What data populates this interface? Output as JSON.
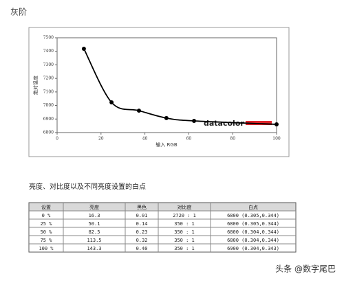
{
  "heading": "灰阶",
  "chart_data": {
    "type": "line",
    "x_label": "输入 RGB",
    "y_label": "绝对温度",
    "logo": "datacolor",
    "x": [
      12.2,
      24.8,
      37.3,
      49.8,
      62.4,
      100
    ],
    "values": [
      7419,
      7023,
      6962,
      6907,
      6886,
      6861
    ],
    "color": "#000000",
    "xlim": [
      0,
      100
    ],
    "xticks": [
      0,
      20,
      40,
      60,
      80,
      100
    ],
    "ylim": [
      6800,
      7500
    ],
    "yticks": [
      6800,
      6900,
      7000,
      7100,
      7200,
      7300,
      7400,
      7500
    ]
  },
  "table_title": "亮度、对比度以及不同亮度设置的白点",
  "table": {
    "header": [
      "设置",
      "亮度",
      "黑色",
      "对比度",
      "白点"
    ],
    "rows": [
      [
        "0 %",
        "16.3",
        "0.01",
        "2720 : 1",
        "6800 (0.305,0.344)"
      ],
      [
        "25 %",
        "50.1",
        "0.14",
        "350 : 1",
        "6800 (0.305,0.344)"
      ],
      [
        "50 %",
        "82.5",
        "0.23",
        "350 : 1",
        "6800 (0.304,0.344)"
      ],
      [
        "75 %",
        "113.5",
        "0.32",
        "350 : 1",
        "6800 (0.304,0.344)"
      ],
      [
        "100 %",
        "143.3",
        "0.40",
        "350 : 1",
        "6900 (0.304,0.343)"
      ]
    ]
  },
  "watermark": "头条 @数字尾巴"
}
